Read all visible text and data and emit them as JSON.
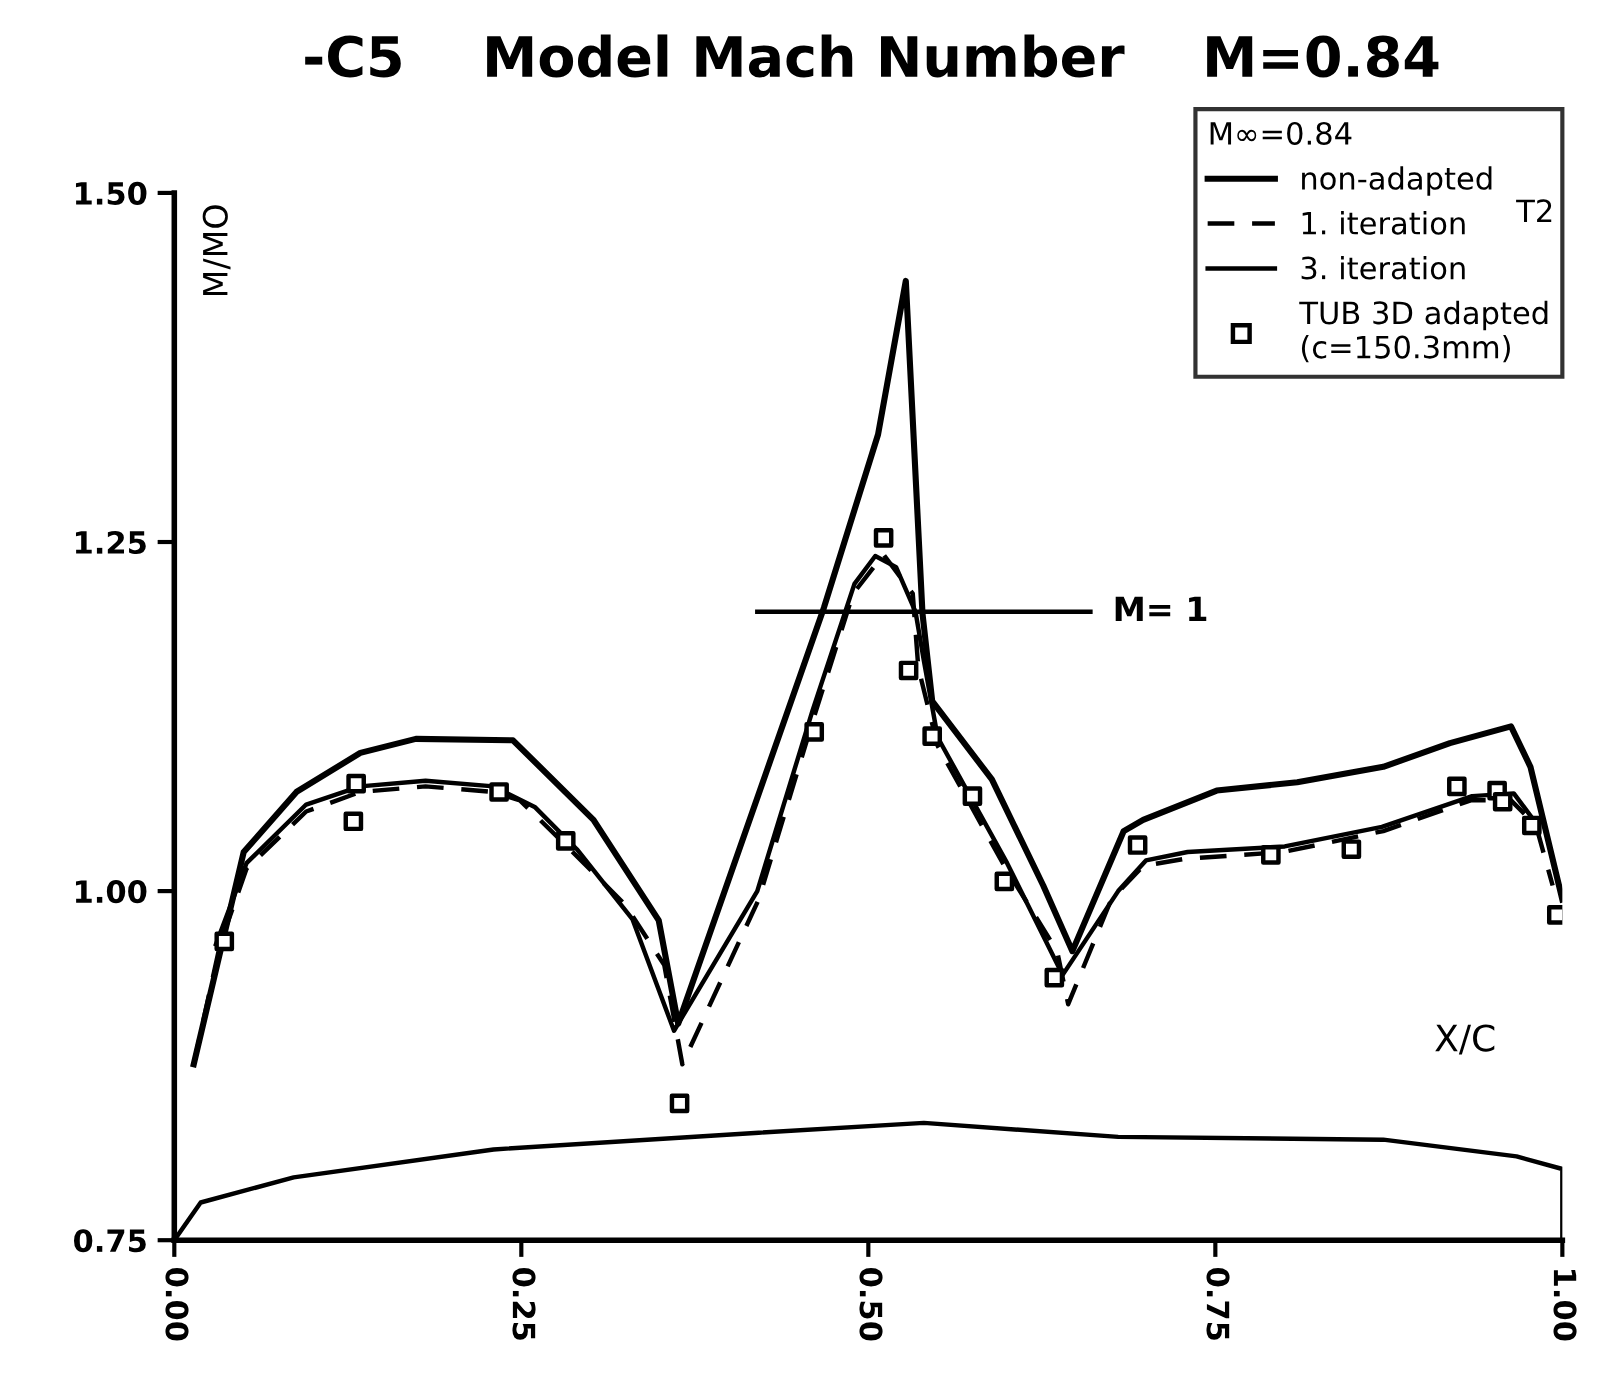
{
  "chart_data": {
    "type": "line",
    "title": "-C5    Model Mach Number    M=0.84",
    "xlabel": "X/C",
    "ylabel": "M/MO",
    "legend_title": "M∞=0.84",
    "xlim": [
      0,
      1
    ],
    "ylim": [
      0.75,
      1.5
    ],
    "xticks": [
      {
        "value": 0,
        "label": "0.00"
      },
      {
        "value": 0.25,
        "label": "0.25"
      },
      {
        "value": 0.5,
        "label": "0.50"
      },
      {
        "value": 0.75,
        "label": "0.75"
      },
      {
        "value": 1,
        "label": "1.00"
      }
    ],
    "yticks": [
      {
        "value": 0.75,
        "label": "0.75"
      },
      {
        "value": 1.0,
        "label": "1.00"
      },
      {
        "value": 1.25,
        "label": "1.25"
      },
      {
        "value": 1.5,
        "label": "1.50"
      }
    ],
    "grid": false,
    "legend": "top right",
    "series": [
      {
        "name": "non-adapted",
        "color": "#000000",
        "line_style": "solid",
        "marker": "none",
        "x": [
          0.014,
          0.05,
          0.088,
          0.134,
          0.174,
          0.244,
          0.302,
          0.349,
          0.363,
          0.468,
          0.507,
          0.527,
          0.539,
          0.546,
          0.589,
          0.626,
          0.647,
          0.684,
          0.698,
          0.751,
          0.809,
          0.871,
          0.919,
          0.963,
          0.977,
          1.0
        ],
        "values": [
          0.876,
          1.028,
          1.071,
          1.099,
          1.109,
          1.108,
          1.051,
          0.979,
          0.905,
          1.203,
          1.327,
          1.437,
          1.199,
          1.136,
          1.08,
          1.004,
          0.957,
          1.043,
          1.051,
          1.072,
          1.078,
          1.089,
          1.106,
          1.118,
          1.089,
          0.994
        ]
      },
      {
        "name": "1. iteration",
        "color": "#000000",
        "line_style": "dashed",
        "marker": "none",
        "x": [
          0.014,
          0.033,
          0.052,
          0.095,
          0.134,
          0.181,
          0.23,
          0.249,
          0.282,
          0.325,
          0.353,
          0.366,
          0.421,
          0.46,
          0.489,
          0.511,
          0.532,
          0.536,
          0.55,
          0.598,
          0.636,
          0.644,
          0.675,
          0.698,
          0.727,
          0.799,
          0.871,
          0.934,
          0.963,
          0.981,
          0.993
        ],
        "values": [
          0.876,
          0.962,
          1.016,
          1.057,
          1.071,
          1.075,
          1.071,
          1.065,
          1.033,
          0.99,
          0.947,
          0.876,
          0.994,
          1.122,
          1.213,
          1.241,
          1.213,
          1.16,
          1.104,
          1.018,
          0.957,
          0.919,
          0.994,
          1.018,
          1.023,
          1.028,
          1.043,
          1.065,
          1.065,
          1.047,
          1.004
        ]
      },
      {
        "name": "3. iteration",
        "color": "#000000",
        "line_style": "solid",
        "marker": "none",
        "x": [
          0.03,
          0.052,
          0.095,
          0.134,
          0.181,
          0.23,
          0.26,
          0.29,
          0.33,
          0.36,
          0.42,
          0.46,
          0.49,
          0.505,
          0.52,
          0.534,
          0.54,
          0.55,
          0.6,
          0.64,
          0.68,
          0.7,
          0.73,
          0.8,
          0.87,
          0.935,
          0.965,
          0.98
        ],
        "values": [
          0.962,
          1.02,
          1.062,
          1.075,
          1.079,
          1.075,
          1.06,
          1.03,
          0.98,
          0.9,
          1.0,
          1.13,
          1.22,
          1.24,
          1.232,
          1.2,
          1.165,
          1.11,
          1.02,
          0.94,
          1.0,
          1.022,
          1.028,
          1.032,
          1.046,
          1.068,
          1.07,
          1.05
        ]
      },
      {
        "name": "TUB 3D adapted\n(c=150.3mm)",
        "type": "scatter",
        "color": "#000000",
        "marker": "square",
        "x": [
          0.036,
          0.131,
          0.129,
          0.234,
          0.282,
          0.364,
          0.461,
          0.511,
          0.529,
          0.546,
          0.575,
          0.598,
          0.634,
          0.694,
          0.79,
          0.848,
          0.924,
          0.953,
          0.957,
          0.978,
          0.996
        ],
        "values": [
          0.964,
          1.077,
          1.05,
          1.071,
          1.036,
          0.848,
          1.114,
          1.253,
          1.158,
          1.111,
          1.068,
          1.007,
          0.938,
          1.033,
          1.026,
          1.03,
          1.075,
          1.072,
          1.064,
          1.047,
          0.983
        ]
      },
      {
        "color": "#000000",
        "line_style": "solid",
        "marker": "none",
        "x": [
          0.0,
          0.019,
          0.086,
          0.23,
          0.421,
          0.54,
          0.68,
          0.871,
          0.967,
          1.0,
          1.0
        ],
        "values": [
          0.75,
          0.777,
          0.795,
          0.815,
          0.827,
          0.834,
          0.824,
          0.822,
          0.81,
          0.801,
          0.75
        ]
      },
      {
        "color": "#000000",
        "line_style": "solid",
        "marker": "none",
        "x": [
          0.42,
          0.66
        ],
        "values": [
          1.2,
          1.2
        ]
      }
    ],
    "annotations": [
      {
        "text": "M= 1",
        "x": 0.66,
        "y": 1.2
      },
      "T2"
    ]
  }
}
